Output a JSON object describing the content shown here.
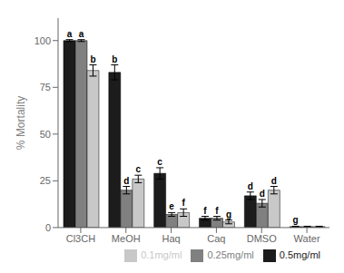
{
  "chart_data": {
    "type": "bar",
    "categories": [
      "Cl3CH",
      "MeOH",
      "Haq",
      "Caq",
      "DMSO",
      "Water"
    ],
    "series": [
      {
        "name": "0.5mg/ml",
        "color": "#1c1c1c",
        "values": [
          100,
          83,
          29,
          5,
          17,
          0.5
        ],
        "errors": [
          0.5,
          4,
          3,
          1,
          2,
          0.2
        ],
        "letters": [
          "a",
          "b",
          "c",
          "f",
          "d",
          "g"
        ]
      },
      {
        "name": "0.25mg/ml",
        "color": "#808080",
        "values": [
          100,
          20,
          7,
          5,
          13,
          0.5
        ],
        "errors": [
          0.5,
          2,
          1,
          1,
          2,
          0.2
        ],
        "letters": [
          "a",
          "d",
          "e",
          "f",
          "d",
          null
        ]
      },
      {
        "name": "0.1mg/ml",
        "color": "#c8c8c8",
        "values": [
          84,
          26,
          8,
          3,
          20,
          0.5
        ],
        "errors": [
          3,
          2,
          2,
          1,
          2,
          0.2
        ],
        "letters": [
          "b",
          "c",
          "f",
          "g",
          "d",
          null
        ]
      }
    ],
    "ylabel": "% Mortality",
    "ylim": [
      0,
      112
    ],
    "yticks": [
      0,
      25,
      50,
      75,
      100
    ],
    "legend": "lower right"
  }
}
